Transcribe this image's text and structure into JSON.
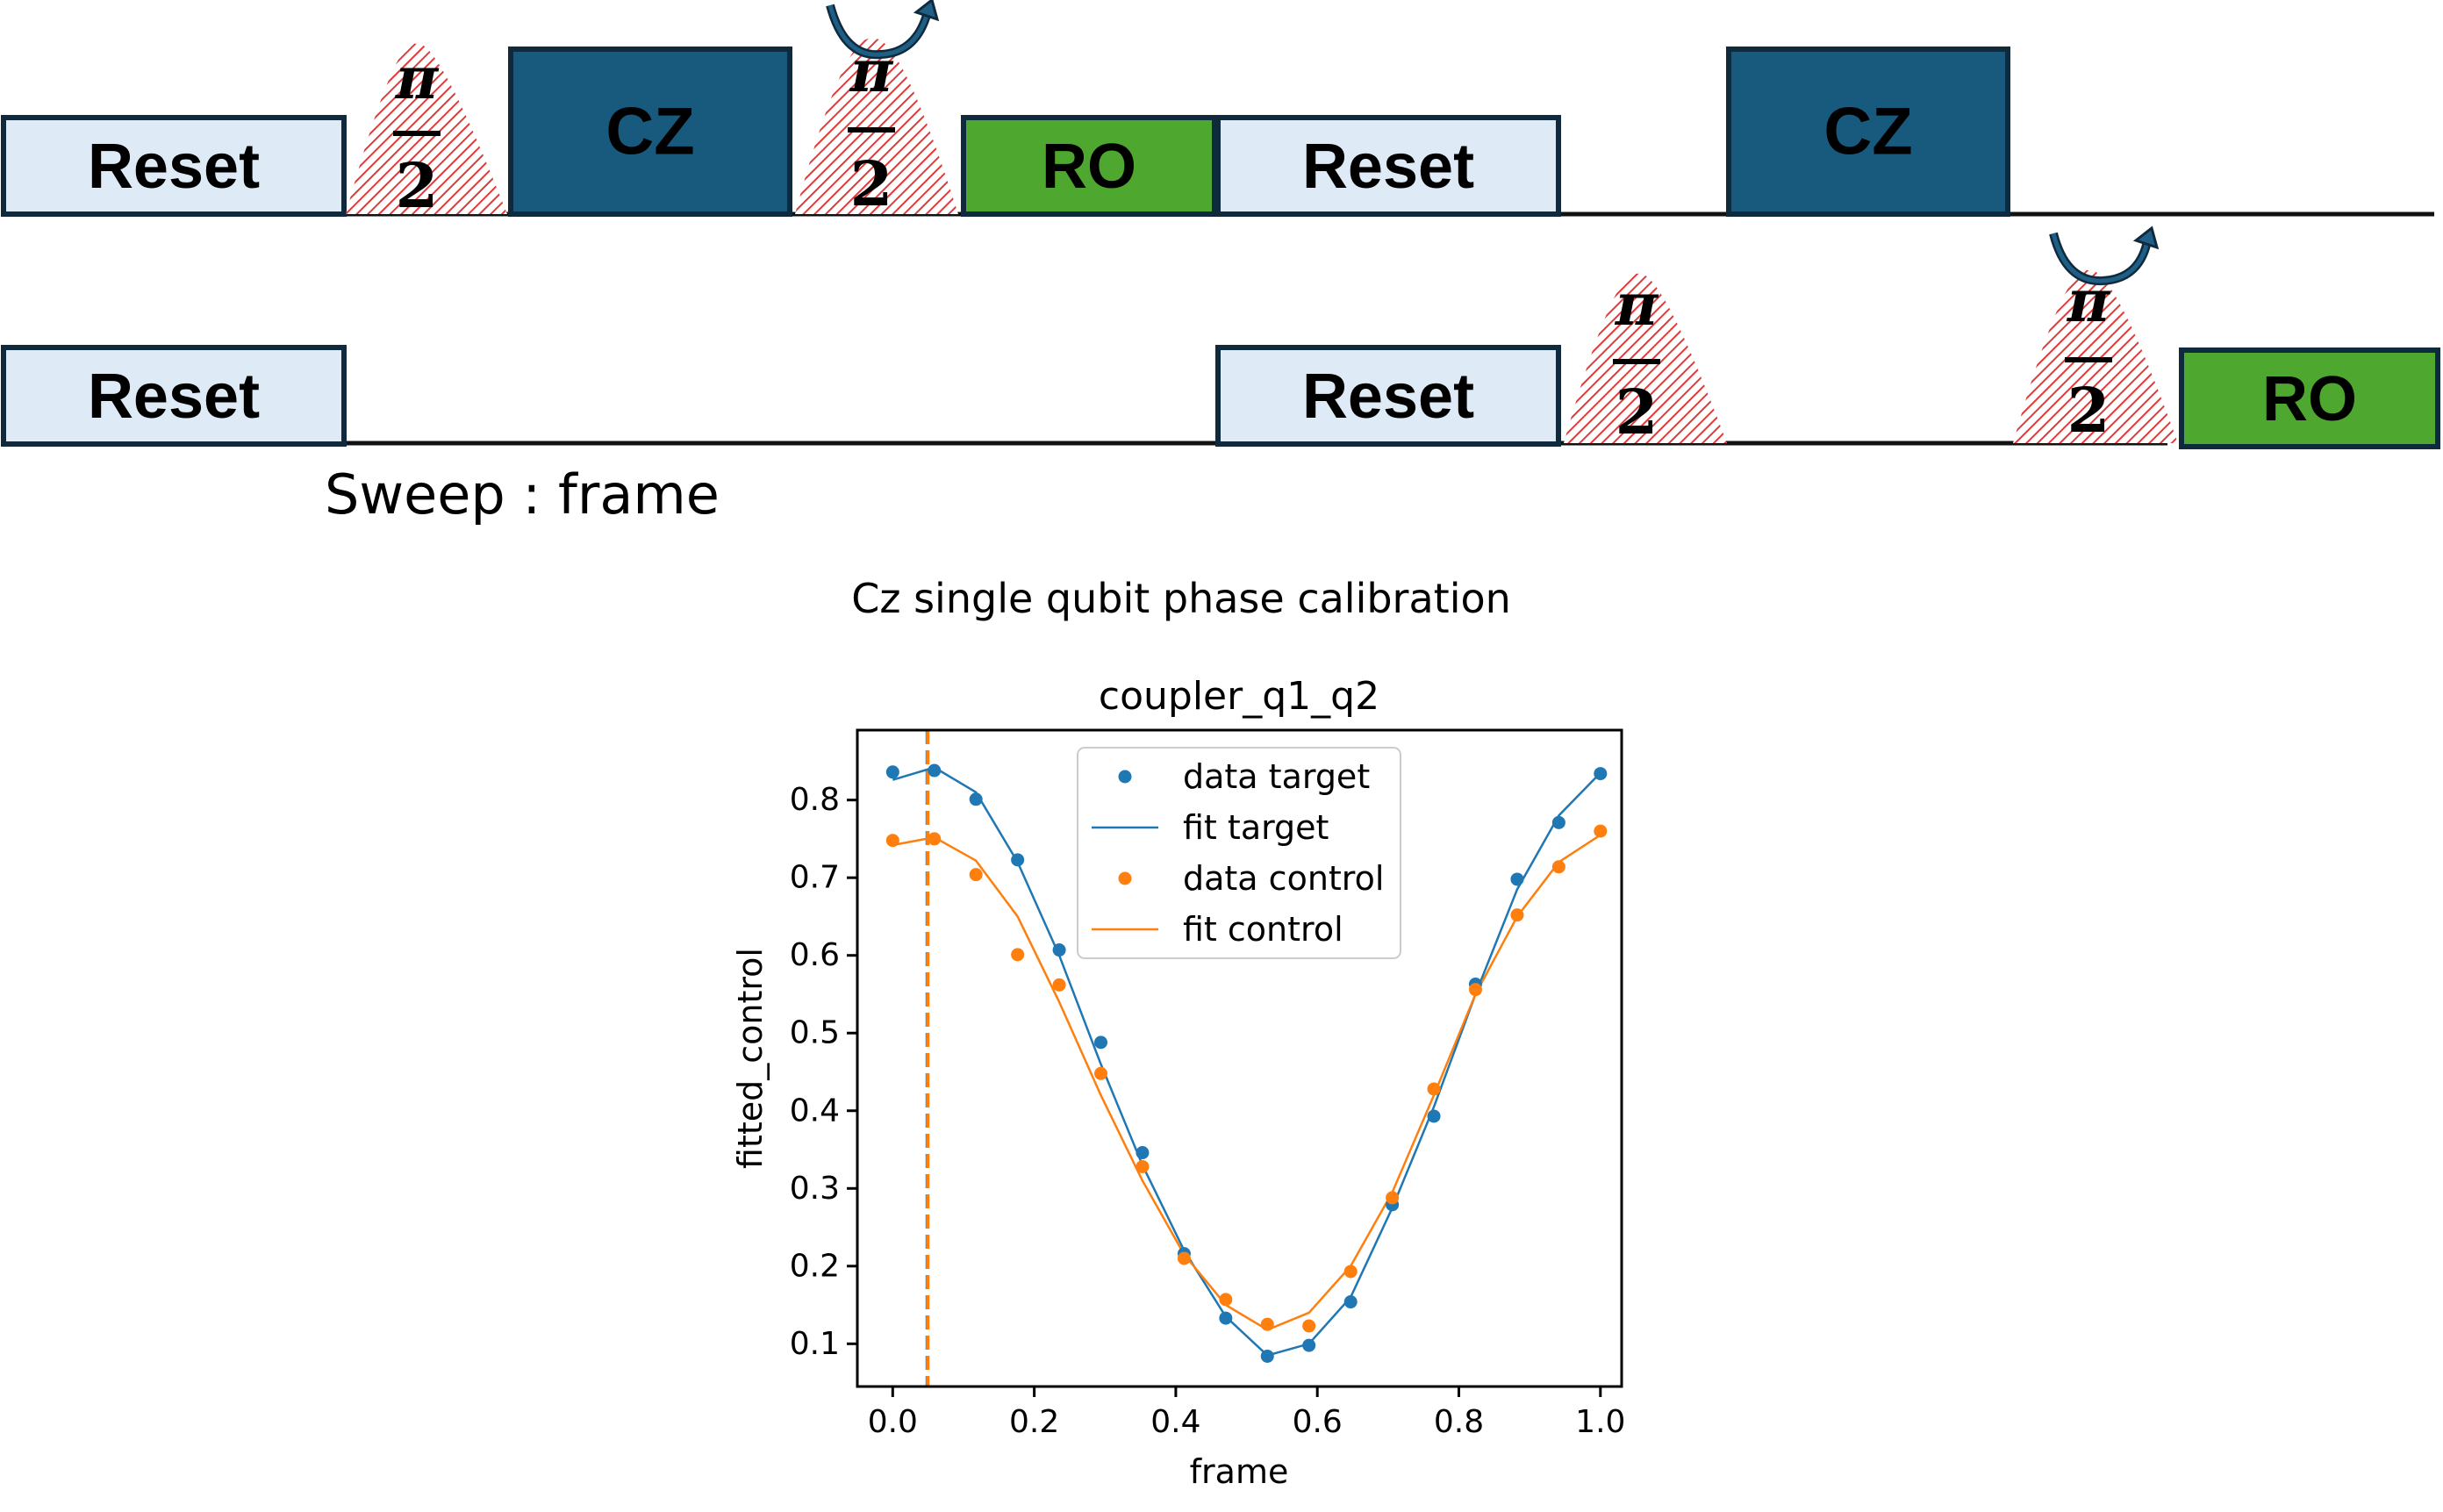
{
  "pulse_sequence": {
    "reset_label": "Reset",
    "cz_label": "CZ",
    "ro_label": "RO",
    "pi_label": "π",
    "two_label": "2",
    "sweep_label": "Sweep : frame",
    "colors": {
      "reset_fill": "#deebf7",
      "cz_fill": "#175a7e",
      "ro_fill": "#4ea72e",
      "pulse_hatch": "#e03a3a",
      "outline": "#0f2a3d",
      "arrow": "#1f5f86"
    }
  },
  "suptitle": "Cz single qubit phase calibration",
  "chart_data": {
    "type": "scatter",
    "title": "coupler_q1_q2",
    "xlabel": "frame",
    "ylabel": "fitted_control",
    "xlim": [
      -0.05,
      1.03
    ],
    "ylim": [
      0.045,
      0.89
    ],
    "xticks": [
      "0.0",
      "0.2",
      "0.4",
      "0.6",
      "0.8",
      "1.0"
    ],
    "yticks": [
      "0.1",
      "0.2",
      "0.3",
      "0.4",
      "0.5",
      "0.6",
      "0.7",
      "0.8"
    ],
    "legend_position": "top-center",
    "grid": false,
    "x": [
      0.0,
      0.0588,
      0.1176,
      0.1765,
      0.2353,
      0.2941,
      0.3529,
      0.4118,
      0.4706,
      0.5294,
      0.5882,
      0.6471,
      0.7059,
      0.7647,
      0.8235,
      0.8824,
      0.9412,
      1.0
    ],
    "series": [
      {
        "name": "data target",
        "style": "points",
        "color": "#1f77b4",
        "values": [
          0.836,
          0.838,
          0.801,
          0.723,
          0.607,
          0.488,
          0.346,
          0.216,
          0.133,
          0.084,
          0.098,
          0.154,
          0.279,
          0.393,
          0.563,
          0.698,
          0.771,
          0.834
        ]
      },
      {
        "name": "fit target",
        "style": "line",
        "color": "#1f77b4",
        "values": [
          0.826,
          0.842,
          0.81,
          0.72,
          0.6,
          0.46,
          0.33,
          0.22,
          0.135,
          0.085,
          0.1,
          0.16,
          0.275,
          0.405,
          0.55,
          0.685,
          0.78,
          0.835
        ]
      },
      {
        "name": "data control",
        "style": "points",
        "color": "#ff7f0e",
        "values": [
          0.748,
          0.75,
          0.704,
          0.601,
          0.562,
          0.448,
          0.328,
          0.21,
          0.157,
          0.125,
          0.123,
          0.193,
          0.288,
          0.428,
          0.556,
          0.652,
          0.714,
          0.76
        ]
      },
      {
        "name": "fit control",
        "style": "line",
        "color": "#ff7f0e",
        "values": [
          0.742,
          0.752,
          0.722,
          0.65,
          0.54,
          0.42,
          0.31,
          0.215,
          0.15,
          0.118,
          0.14,
          0.2,
          0.295,
          0.42,
          0.55,
          0.65,
          0.72,
          0.755
        ]
      }
    ],
    "vlines": [
      {
        "x": 0.0489,
        "color": "#1f77b4"
      },
      {
        "x": 0.0495,
        "color": "#ff7f0e"
      }
    ]
  }
}
